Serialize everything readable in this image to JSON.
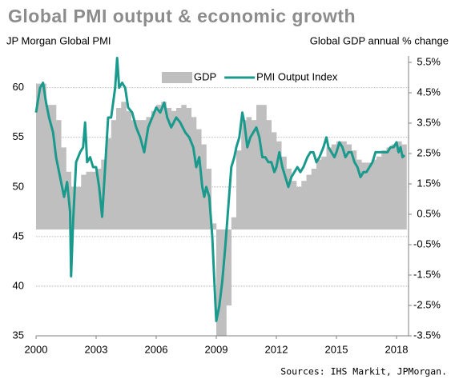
{
  "chart_data": {
    "type": "bar-line",
    "title": "Global PMI output & economic growth",
    "y_label": "JP Morgan Global  PMI",
    "y2_label": "Global  GDP annual % change",
    "source": "Sources: IHS Markit, JPMorgan.",
    "xlim": [
      2000,
      2018.6
    ],
    "xticks": [
      2000,
      2003,
      2006,
      2009,
      2012,
      2015,
      2018
    ],
    "ylim": [
      35,
      63.2
    ],
    "yticks": [
      35,
      40,
      45,
      50,
      55,
      60
    ],
    "y2lim": [
      -3.5,
      5.71
    ],
    "y2ticks": [
      {
        "value": -3.5,
        "label": "-3.5%"
      },
      {
        "value": -2.5,
        "label": "-2.5%"
      },
      {
        "value": -1.5,
        "label": "-1.5%"
      },
      {
        "value": -0.5,
        "label": "-0.5%"
      },
      {
        "value": 0.5,
        "label": "0.5%"
      },
      {
        "value": 1.5,
        "label": "1.5%"
      },
      {
        "value": 2.5,
        "label": "2.5%"
      },
      {
        "value": 3.5,
        "label": "3.5%"
      },
      {
        "value": 4.5,
        "label": "4.5%"
      },
      {
        "value": 5.5,
        "label": "5.5%"
      }
    ],
    "grid": true,
    "legend": "top",
    "series": [
      {
        "name": "GDP",
        "type": "bar",
        "axis": "y2",
        "color": "#bfbfbf",
        "x": [
          2000,
          2000.25,
          2000.5,
          2000.75,
          2001,
          2001.25,
          2001.5,
          2001.75,
          2002,
          2002.25,
          2002.5,
          2002.75,
          2003,
          2003.25,
          2003.5,
          2003.75,
          2004,
          2004.25,
          2004.5,
          2004.75,
          2005,
          2005.25,
          2005.5,
          2005.75,
          2006,
          2006.25,
          2006.5,
          2006.75,
          2007,
          2007.25,
          2007.5,
          2007.75,
          2008,
          2008.25,
          2008.5,
          2008.75,
          2009,
          2009.25,
          2009.5,
          2009.75,
          2010,
          2010.25,
          2010.5,
          2010.75,
          2011,
          2011.25,
          2011.5,
          2011.75,
          2012,
          2012.25,
          2012.5,
          2012.75,
          2013,
          2013.25,
          2013.5,
          2013.75,
          2014,
          2014.25,
          2014.5,
          2014.75,
          2015,
          2015.25,
          2015.5,
          2015.75,
          2016,
          2016.25,
          2016.5,
          2016.75,
          2017,
          2017.25,
          2017.5,
          2017.75,
          2018,
          2018.25
        ],
        "values": [
          4.8,
          4.8,
          4.1,
          4.1,
          3.6,
          2.7,
          1.9,
          1.4,
          1.4,
          1.8,
          1.9,
          1.9,
          2.0,
          2.3,
          3.0,
          3.6,
          4.0,
          4.2,
          3.9,
          3.6,
          3.6,
          3.6,
          3.7,
          3.9,
          4.1,
          4.2,
          4.0,
          3.9,
          4.0,
          4.1,
          4.0,
          3.7,
          3.3,
          2.8,
          2.0,
          0.2,
          -3.5,
          -3.5,
          -2.5,
          0.4,
          2.6,
          3.6,
          3.7,
          3.6,
          4.1,
          4.1,
          3.6,
          3.2,
          2.9,
          2.4,
          2.0,
          1.6,
          1.4,
          1.6,
          1.8,
          2.0,
          2.3,
          2.4,
          2.7,
          2.8,
          2.9,
          2.9,
          2.8,
          2.6,
          2.3,
          2.2,
          2.2,
          2.3,
          2.4,
          2.6,
          2.7,
          2.8,
          2.9,
          2.8
        ]
      },
      {
        "name": "PMI Output Index",
        "type": "line",
        "axis": "y",
        "color": "#1a9a8c",
        "x": [
          2000.0,
          2000.2,
          2000.35,
          2000.5,
          2000.65,
          2000.85,
          2001.0,
          2001.2,
          2001.4,
          2001.55,
          2001.7,
          2001.75,
          2001.85,
          2002.0,
          2002.2,
          2002.35,
          2002.45,
          2002.55,
          2002.7,
          2002.85,
          2003.0,
          2003.15,
          2003.3,
          2003.45,
          2003.6,
          2003.75,
          2003.95,
          2004.05,
          2004.15,
          2004.3,
          2004.45,
          2004.6,
          2004.8,
          2005.0,
          2005.2,
          2005.4,
          2005.6,
          2005.8,
          2006.0,
          2006.2,
          2006.4,
          2006.55,
          2006.75,
          2007.0,
          2007.2,
          2007.45,
          2007.65,
          2007.85,
          2008.0,
          2008.15,
          2008.3,
          2008.4,
          2008.5,
          2008.65,
          2008.8,
          2008.95,
          2009.0,
          2009.15,
          2009.3,
          2009.45,
          2009.6,
          2009.75,
          2009.9,
          2010.0,
          2010.15,
          2010.3,
          2010.4,
          2010.55,
          2010.7,
          2010.85,
          2011.0,
          2011.15,
          2011.3,
          2011.45,
          2011.6,
          2011.75,
          2011.9,
          2012.0,
          2012.15,
          2012.3,
          2012.45,
          2012.6,
          2012.75,
          2012.9,
          2013.05,
          2013.2,
          2013.35,
          2013.55,
          2013.7,
          2013.85,
          2014.0,
          2014.15,
          2014.35,
          2014.5,
          2014.6,
          2014.75,
          2014.9,
          2015.0,
          2015.15,
          2015.3,
          2015.45,
          2015.6,
          2015.75,
          2015.9,
          2016.05,
          2016.2,
          2016.35,
          2016.5,
          2016.65,
          2016.8,
          2016.95,
          2017.1,
          2017.25,
          2017.4,
          2017.55,
          2017.7,
          2017.85,
          2018.0,
          2018.1,
          2018.2,
          2018.3,
          2018.4
        ],
        "values": [
          57.5,
          60,
          60.5,
          58.5,
          57,
          55.5,
          53,
          51,
          49,
          50.5,
          47.5,
          41,
          46.5,
          52.5,
          53.5,
          54,
          56.5,
          52.5,
          53,
          52,
          52,
          50,
          47,
          52,
          57,
          57,
          60,
          63,
          60,
          60.5,
          60,
          58,
          57.5,
          56,
          55,
          53.5,
          56,
          57,
          58,
          57.5,
          58.5,
          57,
          56,
          57,
          56.5,
          55.5,
          55,
          54,
          52,
          53,
          50,
          49,
          50,
          49,
          45,
          38.5,
          36.5,
          38,
          40.5,
          44,
          48,
          52,
          53,
          54,
          55,
          57.5,
          56.5,
          54,
          55,
          55.5,
          56,
          55,
          53,
          53,
          52.5,
          52.5,
          51.5,
          52,
          53.5,
          52,
          51,
          50,
          51,
          51.5,
          52,
          51.5,
          52,
          53,
          53.5,
          53.5,
          52.5,
          53,
          54,
          55,
          54,
          53.5,
          53,
          53.5,
          54.5,
          54,
          53,
          53.5,
          53.5,
          52.5,
          52,
          51,
          51.5,
          51.5,
          52,
          52.5,
          53.5,
          53.5,
          53.5,
          53.5,
          53.5,
          54,
          54,
          54.5,
          53.5,
          54,
          53,
          53.2
        ]
      }
    ]
  }
}
